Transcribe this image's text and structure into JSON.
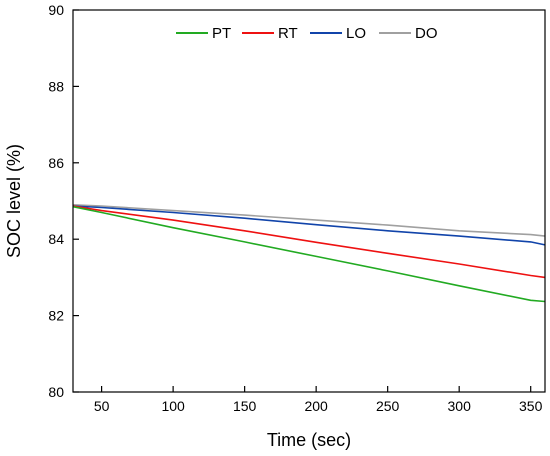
{
  "chart_data": {
    "type": "line",
    "xlabel": "Time (sec)",
    "ylabel": "SOC level (%)",
    "xlim": [
      30,
      360
    ],
    "ylim": [
      80,
      90
    ],
    "x_ticks": [
      50,
      100,
      150,
      200,
      250,
      300,
      350
    ],
    "y_ticks": [
      80,
      82,
      84,
      86,
      88,
      90
    ],
    "legend_position": "top-center",
    "grid": false,
    "series": [
      {
        "name": "PT",
        "color": "#22aa22",
        "x": [
          30,
          50,
          100,
          150,
          200,
          250,
          300,
          350,
          360
        ],
        "y": [
          84.85,
          84.7,
          84.3,
          83.93,
          83.55,
          83.17,
          82.78,
          82.4,
          82.37
        ]
      },
      {
        "name": "RT",
        "color": "#ee1111",
        "x": [
          30,
          50,
          100,
          150,
          200,
          250,
          300,
          350,
          360
        ],
        "y": [
          84.87,
          84.75,
          84.5,
          84.22,
          83.92,
          83.63,
          83.35,
          83.05,
          83.0
        ]
      },
      {
        "name": "LO",
        "color": "#1144aa",
        "x": [
          30,
          50,
          100,
          150,
          200,
          250,
          300,
          350,
          360
        ],
        "y": [
          84.87,
          84.83,
          84.7,
          84.55,
          84.38,
          84.22,
          84.08,
          83.93,
          83.85
        ]
      },
      {
        "name": "DO",
        "color": "#a0a0a0",
        "x": [
          30,
          50,
          100,
          150,
          200,
          250,
          300,
          350,
          360
        ],
        "y": [
          84.9,
          84.87,
          84.75,
          84.63,
          84.5,
          84.37,
          84.22,
          84.12,
          84.08
        ]
      }
    ]
  }
}
